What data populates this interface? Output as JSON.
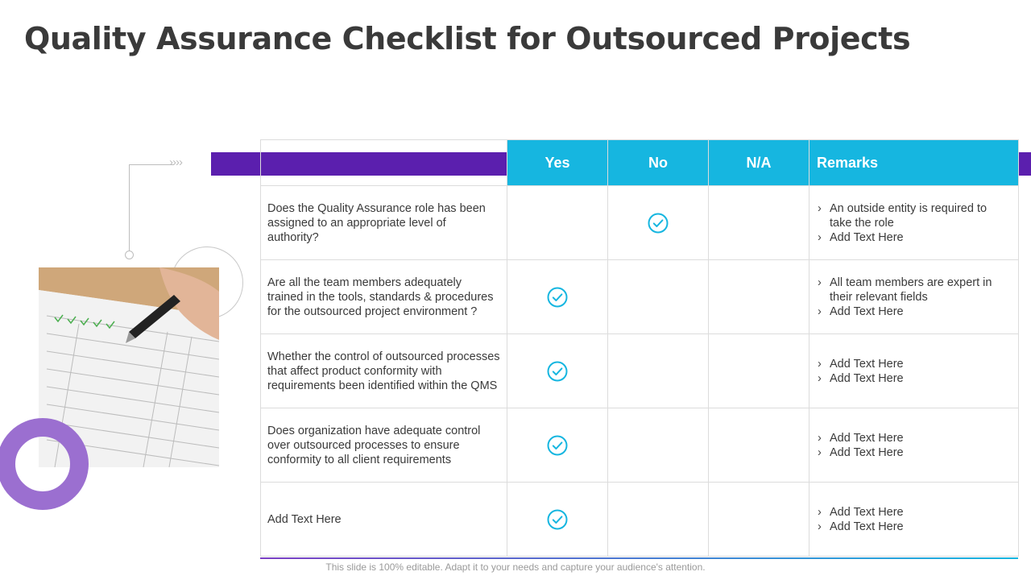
{
  "title": "Quality Assurance Checklist for Outsourced Projects",
  "decor": {
    "arrows": "››››"
  },
  "colors": {
    "header": "#16b6e0",
    "band": "#5b1fae",
    "ring": "#9b6fd0",
    "check": "#16b6e0"
  },
  "table": {
    "headers": {
      "yes": "Yes",
      "no": "No",
      "na": "N/A",
      "remarks": "Remarks"
    },
    "rows": [
      {
        "question": "Does the Quality Assurance role has been assigned to an appropriate level of authority?",
        "answer": "no",
        "remarks": [
          "An outside entity is required to take the role",
          "Add Text Here"
        ]
      },
      {
        "question": "Are all the team members adequately trained in the tools, standards & procedures for the outsourced project environment ?",
        "answer": "yes",
        "remarks": [
          "All team members are expert in their relevant fields",
          "Add Text Here"
        ]
      },
      {
        "question": "Whether the control of outsourced processes that affect product conformity with requirements been identified within the QMS",
        "answer": "yes",
        "remarks": [
          "Add Text Here",
          "Add Text Here"
        ]
      },
      {
        "question": "Does organization have adequate control over outsourced processes to ensure conformity to all client requirements",
        "answer": "yes",
        "remarks": [
          "Add Text Here",
          "Add Text Here"
        ]
      },
      {
        "question": "Add Text Here",
        "answer": "yes",
        "remarks": [
          "Add Text Here",
          "Add Text Here"
        ]
      }
    ]
  },
  "photo": {
    "icon": "hand-pen-checklist-photo"
  },
  "footer": "This slide is 100% editable. Adapt it to your needs and capture your audience's attention."
}
